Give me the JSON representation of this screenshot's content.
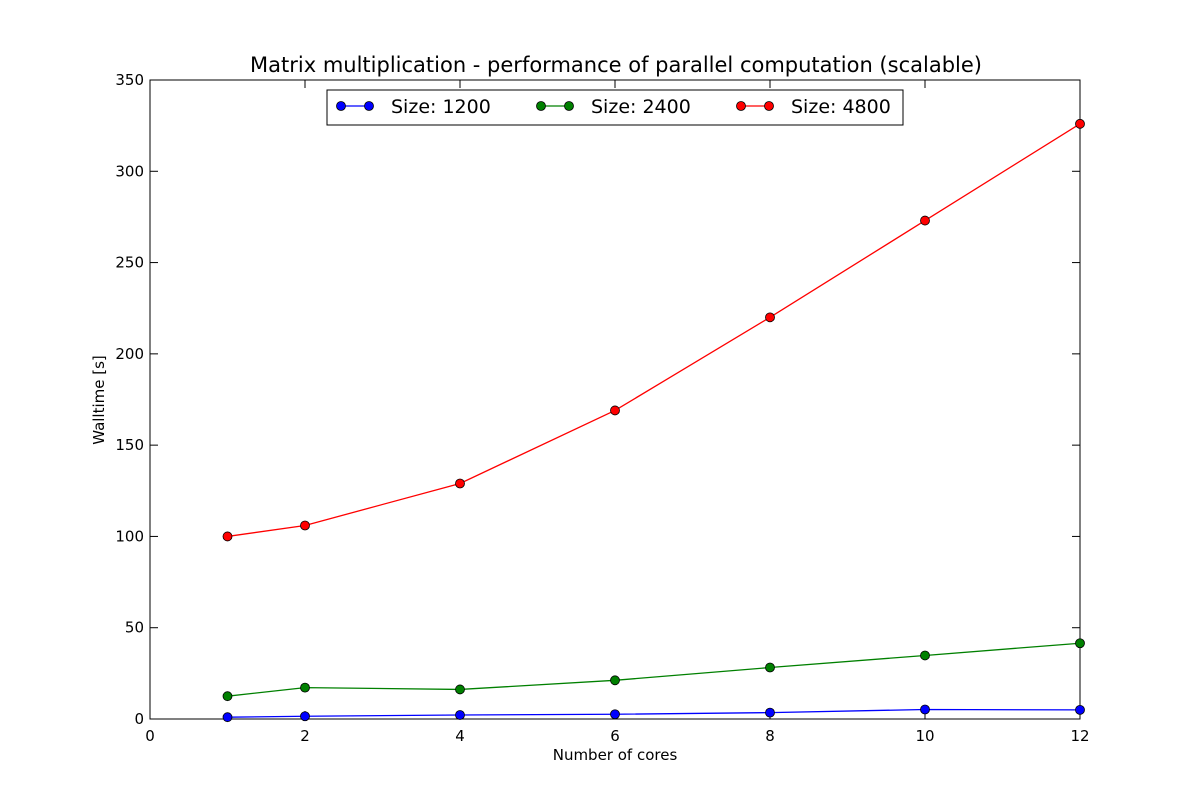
{
  "chart_data": {
    "type": "line",
    "title": "Matrix multiplication - performance of parallel computation (scalable)",
    "xlabel": "Number of cores",
    "ylabel": "Walltime [s]",
    "xlim": [
      0,
      12
    ],
    "ylim": [
      0,
      350
    ],
    "xticks": [
      0,
      2,
      4,
      6,
      8,
      10,
      12
    ],
    "yticks": [
      0,
      50,
      100,
      150,
      200,
      250,
      300,
      350
    ],
    "grid": false,
    "legend_position": "top-center",
    "x": [
      1,
      2,
      4,
      6,
      8,
      10,
      12
    ],
    "series": [
      {
        "name": "Size: 1200",
        "color": "#0000ff",
        "marker": "circle",
        "values": [
          1.0,
          1.5,
          2.2,
          2.6,
          3.5,
          5.2,
          5.0
        ]
      },
      {
        "name": "Size: 2400",
        "color": "#008000",
        "marker": "circle",
        "values": [
          12.5,
          17.2,
          16.2,
          21.2,
          28.2,
          34.8,
          41.5
        ]
      },
      {
        "name": "Size: 4800",
        "color": "#ff0000",
        "marker": "circle",
        "values": [
          100,
          106,
          129,
          169,
          220,
          273,
          326
        ]
      }
    ]
  }
}
